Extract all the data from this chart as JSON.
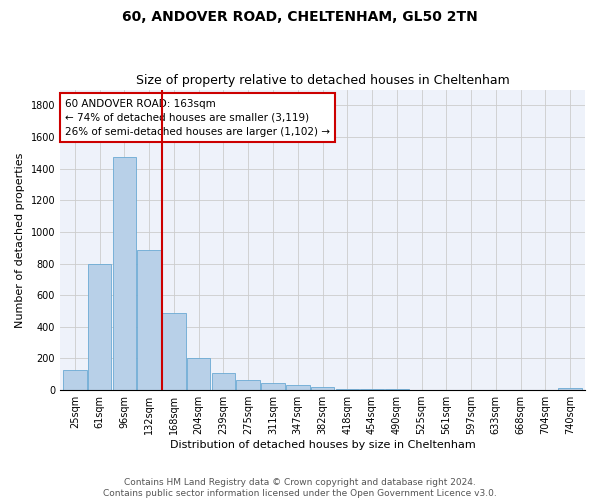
{
  "title": "60, ANDOVER ROAD, CHELTENHAM, GL50 2TN",
  "subtitle": "Size of property relative to detached houses in Cheltenham",
  "xlabel": "Distribution of detached houses by size in Cheltenham",
  "ylabel": "Number of detached properties",
  "categories": [
    "25sqm",
    "61sqm",
    "96sqm",
    "132sqm",
    "168sqm",
    "204sqm",
    "239sqm",
    "275sqm",
    "311sqm",
    "347sqm",
    "382sqm",
    "418sqm",
    "454sqm",
    "490sqm",
    "525sqm",
    "561sqm",
    "597sqm",
    "633sqm",
    "668sqm",
    "704sqm",
    "740sqm"
  ],
  "values": [
    125,
    800,
    1475,
    885,
    490,
    205,
    105,
    65,
    45,
    33,
    22,
    10,
    10,
    5,
    3,
    2,
    2,
    1,
    1,
    1,
    15
  ],
  "bar_color": "#b8d0e8",
  "bar_edge_color": "#6aaad4",
  "vline_color": "#cc0000",
  "annotation_text": "60 ANDOVER ROAD: 163sqm\n← 74% of detached houses are smaller (3,119)\n26% of semi-detached houses are larger (1,102) →",
  "annotation_box_color": "#cc0000",
  "ylim": [
    0,
    1900
  ],
  "yticks": [
    0,
    200,
    400,
    600,
    800,
    1000,
    1200,
    1400,
    1600,
    1800
  ],
  "footer_line1": "Contains HM Land Registry data © Crown copyright and database right 2024.",
  "footer_line2": "Contains public sector information licensed under the Open Government Licence v3.0.",
  "bg_color": "#eef2fa",
  "grid_color": "#cccccc",
  "title_fontsize": 10,
  "subtitle_fontsize": 9,
  "axis_label_fontsize": 8,
  "tick_fontsize": 7,
  "annotation_fontsize": 7.5,
  "footer_fontsize": 6.5
}
